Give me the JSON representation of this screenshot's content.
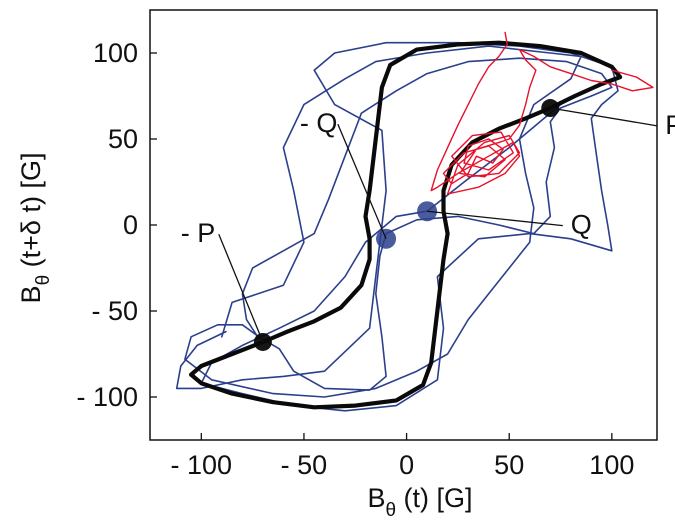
{
  "chart_data": {
    "type": "line",
    "title": "",
    "xlabel": {
      "symbol": "B",
      "subscript": "θ",
      "rest": " (t) [G]"
    },
    "ylabel": {
      "symbol": "B",
      "subscript": "θ",
      "rest": " (t+δ t) [G]"
    },
    "xlim": [
      -125,
      122
    ],
    "ylim": [
      -125,
      125
    ],
    "grid": false,
    "legend": "none",
    "x_ticks": [
      {
        "value": -100,
        "label": "- 100"
      },
      {
        "value": -50,
        "label": "- 50"
      },
      {
        "value": 0,
        "label": "0"
      },
      {
        "value": 50,
        "label": "50"
      },
      {
        "value": 100,
        "label": "100"
      }
    ],
    "y_ticks": [
      {
        "value": 100,
        "label": "100"
      },
      {
        "value": 50,
        "label": "50"
      },
      {
        "value": 0,
        "label": "0"
      },
      {
        "value": -50,
        "label": "- 50"
      },
      {
        "value": -100,
        "label": "- 100"
      }
    ],
    "colors": {
      "black": "#0a0a0a",
      "blue": "#2b3f8c",
      "red": "#e8102a"
    },
    "fixed_points": [
      {
        "label": "P",
        "x": 70,
        "y": 68
      },
      {
        "label": "- P",
        "x": -70,
        "y": -68
      },
      {
        "label": "Q",
        "x": 10,
        "y": 8
      },
      {
        "label": "- Q",
        "x": -10,
        "y": -8
      }
    ],
    "annotations": [
      {
        "text": "P",
        "x": 126,
        "y": 53,
        "point": "P"
      },
      {
        "text": "Q",
        "x": 80,
        "y": -5,
        "point": "Q"
      },
      {
        "text": "- Q",
        "x": -52,
        "y": 54,
        "point": "- Q"
      },
      {
        "text": "- P",
        "x": -110,
        "y": -10,
        "point": "- P"
      }
    ],
    "series": [
      {
        "color": "black",
        "points": [
          [
            70,
            68
          ],
          [
            82,
            75
          ],
          [
            95,
            82
          ],
          [
            104,
            86
          ],
          [
            100,
            92
          ],
          [
            85,
            100
          ],
          [
            65,
            104
          ],
          [
            45,
            106
          ],
          [
            25,
            105
          ],
          [
            5,
            102
          ],
          [
            -8,
            93
          ],
          [
            -12,
            80
          ],
          [
            -14,
            60
          ],
          [
            -16,
            40
          ],
          [
            -18,
            20
          ],
          [
            -20,
            5
          ],
          [
            -18,
            -8
          ],
          [
            -18,
            -20
          ],
          [
            -22,
            -35
          ],
          [
            -32,
            -48
          ],
          [
            -45,
            -56
          ],
          [
            -58,
            -62
          ],
          [
            -70,
            -68
          ],
          [
            -85,
            -75
          ],
          [
            -100,
            -82
          ],
          [
            -105,
            -87
          ],
          [
            -100,
            -92
          ],
          [
            -85,
            -98
          ],
          [
            -65,
            -103
          ],
          [
            -45,
            -106
          ],
          [
            -25,
            -105
          ],
          [
            -5,
            -102
          ],
          [
            8,
            -93
          ],
          [
            12,
            -80
          ],
          [
            14,
            -60
          ],
          [
            16,
            -40
          ],
          [
            18,
            -20
          ],
          [
            20,
            -5
          ],
          [
            18,
            8
          ],
          [
            18,
            20
          ],
          [
            22,
            35
          ],
          [
            32,
            48
          ],
          [
            45,
            56
          ],
          [
            58,
            62
          ],
          [
            70,
            68
          ]
        ]
      },
      {
        "color": "blue",
        "points": [
          [
            -88,
            -62
          ],
          [
            -102,
            -70
          ],
          [
            -110,
            -82
          ],
          [
            -112,
            -95
          ],
          [
            -100,
            -95
          ],
          [
            -80,
            -90
          ],
          [
            -60,
            -88
          ],
          [
            -40,
            -85
          ],
          [
            -18,
            -60
          ],
          [
            -14,
            -20
          ],
          [
            -10,
            20
          ],
          [
            -12,
            55
          ],
          [
            -35,
            70
          ],
          [
            -45,
            90
          ],
          [
            -35,
            100
          ],
          [
            -10,
            106
          ],
          [
            25,
            106
          ],
          [
            55,
            104
          ],
          [
            80,
            100
          ],
          [
            100,
            92
          ],
          [
            103,
            78
          ],
          [
            95,
            70
          ],
          [
            90,
            62
          ],
          [
            92,
            45
          ],
          [
            95,
            20
          ],
          [
            98,
            0
          ],
          [
            100,
            -15
          ],
          [
            80,
            -8
          ],
          [
            60,
            -5
          ],
          [
            35,
            -8
          ],
          [
            15,
            -30
          ],
          [
            18,
            -60
          ],
          [
            15,
            -90
          ],
          [
            -5,
            -105
          ],
          [
            -30,
            -108
          ],
          [
            -55,
            -105
          ],
          [
            -80,
            -98
          ],
          [
            -100,
            -92
          ],
          [
            -95,
            -80
          ],
          [
            -80,
            -70
          ],
          [
            -62,
            -60
          ],
          [
            -45,
            -50
          ],
          [
            -30,
            -30
          ],
          [
            -20,
            -10
          ],
          [
            -5,
            5
          ],
          [
            10,
            8
          ],
          [
            28,
            25
          ],
          [
            50,
            45
          ],
          [
            65,
            60
          ],
          [
            75,
            70
          ],
          [
            88,
            78
          ]
        ]
      },
      {
        "color": "blue",
        "points": [
          [
            -90,
            -65
          ],
          [
            -85,
            -45
          ],
          [
            -60,
            -35
          ],
          [
            -50,
            -10
          ],
          [
            -55,
            20
          ],
          [
            -60,
            45
          ],
          [
            -50,
            70
          ],
          [
            -30,
            85
          ],
          [
            -15,
            95
          ],
          [
            10,
            100
          ],
          [
            40,
            104
          ],
          [
            70,
            100
          ],
          [
            85,
            98
          ],
          [
            80,
            85
          ],
          [
            62,
            70
          ],
          [
            55,
            50
          ],
          [
            58,
            30
          ],
          [
            62,
            10
          ],
          [
            60,
            -10
          ],
          [
            50,
            -25
          ],
          [
            40,
            -40
          ],
          [
            30,
            -55
          ],
          [
            20,
            -75
          ],
          [
            5,
            -85
          ],
          [
            -15,
            -95
          ],
          [
            -40,
            -100
          ],
          [
            -65,
            -98
          ],
          [
            -95,
            -90
          ],
          [
            -108,
            -78
          ],
          [
            -105,
            -65
          ],
          [
            -92,
            -58
          ],
          [
            -80,
            -58
          ],
          [
            -72,
            -65
          ],
          [
            -62,
            -72
          ],
          [
            -55,
            -85
          ],
          [
            -40,
            -95
          ],
          [
            -18,
            -96
          ],
          [
            -10,
            -88
          ],
          [
            -12,
            -65
          ],
          [
            -15,
            -40
          ],
          [
            -13,
            -18
          ],
          [
            -10,
            -5
          ],
          [
            5,
            3
          ],
          [
            25,
            5
          ],
          [
            45,
            0
          ],
          [
            62,
            -5
          ],
          [
            70,
            5
          ],
          [
            68,
            25
          ],
          [
            72,
            45
          ],
          [
            70,
            60
          ],
          [
            75,
            68
          ],
          [
            90,
            75
          ],
          [
            100,
            80
          ],
          [
            95,
            88
          ],
          [
            78,
            95
          ],
          [
            55,
            97
          ],
          [
            30,
            95
          ],
          [
            10,
            88
          ],
          [
            -5,
            78
          ],
          [
            -22,
            65
          ],
          [
            -30,
            40
          ],
          [
            -38,
            15
          ],
          [
            -45,
            -5
          ],
          [
            -60,
            -15
          ],
          [
            -75,
            -25
          ],
          [
            -80,
            -40
          ],
          [
            -78,
            -55
          ],
          [
            -72,
            -66
          ]
        ]
      },
      {
        "color": "red",
        "points": [
          [
            48,
            112
          ],
          [
            49,
            105
          ],
          [
            45,
            98
          ],
          [
            40,
            92
          ],
          [
            35,
            82
          ],
          [
            30,
            70
          ],
          [
            25,
            58
          ],
          [
            20,
            45
          ],
          [
            15,
            32
          ],
          [
            12,
            20
          ],
          [
            15,
            22
          ],
          [
            25,
            30
          ],
          [
            40,
            40
          ],
          [
            52,
            48
          ],
          [
            55,
            40
          ],
          [
            48,
            30
          ],
          [
            35,
            22
          ],
          [
            20,
            18
          ],
          [
            25,
            35
          ],
          [
            38,
            48
          ],
          [
            50,
            52
          ],
          [
            55,
            42
          ],
          [
            45,
            30
          ],
          [
            30,
            28
          ],
          [
            22,
            40
          ],
          [
            32,
            52
          ],
          [
            46,
            54
          ],
          [
            52,
            42
          ],
          [
            40,
            32
          ],
          [
            28,
            36
          ],
          [
            30,
            46
          ],
          [
            40,
            50
          ],
          [
            47,
            44
          ],
          [
            42,
            36
          ],
          [
            34,
            40
          ],
          [
            30,
            30
          ],
          [
            22,
            24
          ],
          [
            18,
            30
          ],
          [
            28,
            42
          ],
          [
            40,
            46
          ],
          [
            48,
            38
          ],
          [
            38,
            28
          ],
          [
            26,
            30
          ],
          [
            34,
            44
          ],
          [
            45,
            48
          ],
          [
            50,
            50
          ],
          [
            55,
            58
          ],
          [
            58,
            70
          ],
          [
            60,
            80
          ],
          [
            63,
            90
          ],
          [
            58,
            96
          ],
          [
            55,
            102
          ],
          [
            62,
            98
          ],
          [
            70,
            92
          ],
          [
            80,
            88
          ],
          [
            90,
            84
          ],
          [
            100,
            82
          ],
          [
            110,
            78
          ],
          [
            120,
            80
          ],
          [
            112,
            86
          ],
          [
            100,
            90
          ]
        ]
      }
    ]
  }
}
